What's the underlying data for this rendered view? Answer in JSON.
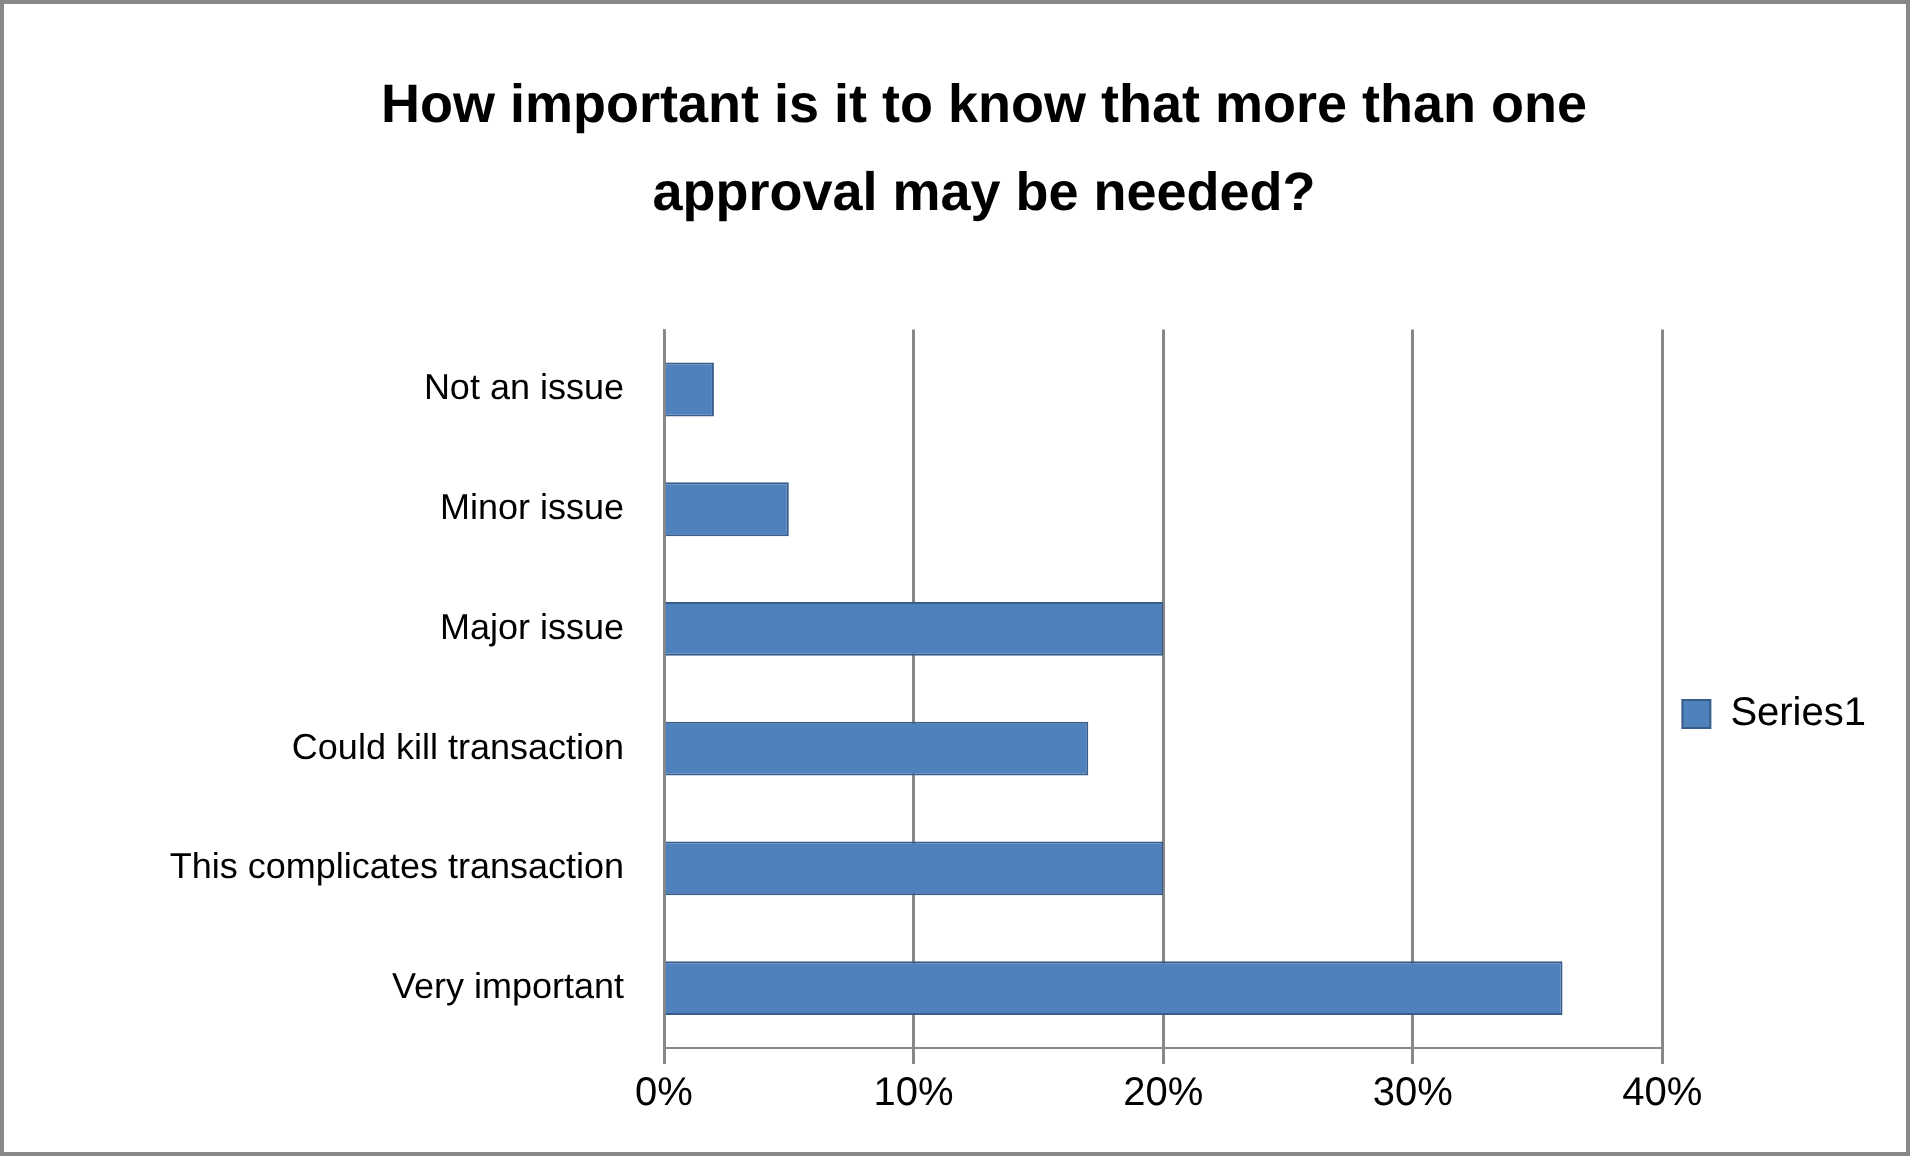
{
  "chart_data": {
    "type": "bar",
    "orientation": "horizontal",
    "title": "How important is it to know that more than one approval may be needed?",
    "categories": [
      "Not an issue",
      "Minor issue",
      "Major issue",
      "Could kill transaction",
      "This complicates transaction",
      "Very important"
    ],
    "series": [
      {
        "name": "Series1",
        "color": "#4f81bd",
        "values": [
          2,
          5,
          20,
          17,
          20,
          36
        ]
      }
    ],
    "xlim": [
      0,
      40
    ],
    "xticks": [
      {
        "value": 0,
        "label": "0%"
      },
      {
        "value": 10,
        "label": "10%"
      },
      {
        "value": 20,
        "label": "20%"
      },
      {
        "value": 30,
        "label": "30%"
      },
      {
        "value": 40,
        "label": "40%"
      }
    ],
    "grid": "x",
    "legend": "right"
  }
}
